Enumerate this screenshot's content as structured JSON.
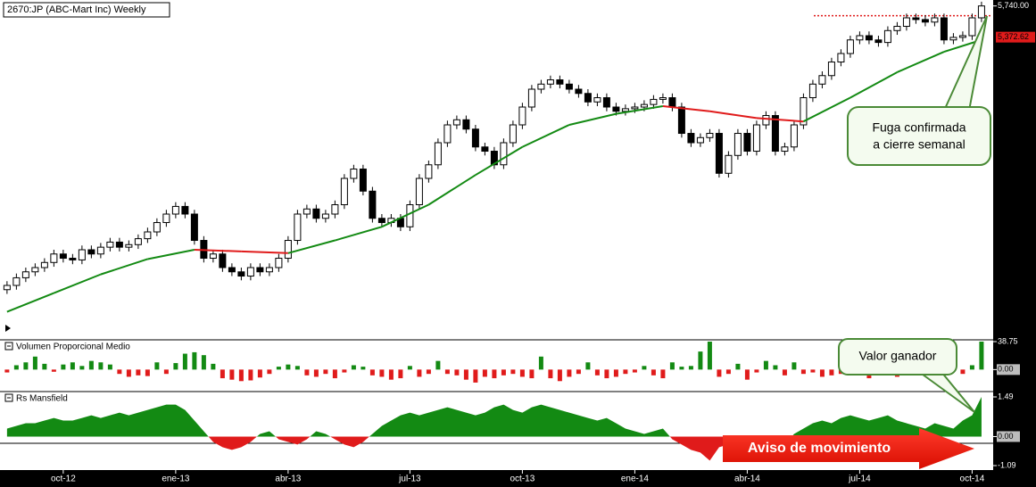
{
  "chart_data": [
    {
      "type": "candlestick",
      "title": "2670:JP (ABC-Mart Inc) Weekly",
      "open": [
        2400,
        2450,
        2540,
        2610,
        2660,
        2720,
        2820,
        2770,
        2750,
        2870,
        2820,
        2900,
        2960,
        2900,
        2930,
        3000,
        3080,
        3190,
        3290,
        3380,
        3290,
        2980,
        2770,
        2820,
        2660,
        2610,
        2560,
        2660,
        2610,
        2660,
        2770,
        2980,
        3290,
        3350,
        3240,
        3290,
        3400,
        3710,
        3820,
        3560,
        3240,
        3190,
        3240,
        3140,
        3400,
        3710,
        3870,
        4130,
        4340,
        4400,
        4290,
        4080,
        4030,
        3870,
        4130,
        4340,
        4550,
        4760,
        4820,
        4870,
        4820,
        4760,
        4710,
        4610,
        4660,
        4550,
        4500,
        4530,
        4550,
        4580,
        4640,
        4660,
        4550,
        4240,
        4130,
        4190,
        4240,
        3770,
        3980,
        4240,
        4030,
        4340,
        4450,
        4030,
        4080,
        4340,
        4660,
        4820,
        4920,
        5080,
        5180,
        5340,
        5390,
        5340,
        5310,
        5450,
        5500,
        5600,
        5580,
        5550,
        5600,
        5340,
        5370,
        5390,
        5600
      ],
      "high": [
        2500,
        2590,
        2660,
        2710,
        2770,
        2870,
        2870,
        2820,
        2920,
        2920,
        2950,
        3010,
        3010,
        2980,
        3050,
        3130,
        3240,
        3340,
        3430,
        3430,
        3340,
        3030,
        2870,
        2870,
        2710,
        2660,
        2710,
        2710,
        2710,
        2820,
        3030,
        3340,
        3400,
        3400,
        3340,
        3450,
        3760,
        3870,
        3870,
        3610,
        3290,
        3290,
        3290,
        3450,
        3760,
        3920,
        4180,
        4390,
        4450,
        4450,
        4340,
        4130,
        4080,
        4180,
        4390,
        4600,
        4810,
        4870,
        4920,
        4920,
        4870,
        4810,
        4760,
        4710,
        4710,
        4600,
        4580,
        4600,
        4630,
        4690,
        4710,
        4710,
        4600,
        4290,
        4240,
        4290,
        4290,
        4030,
        4290,
        4290,
        4390,
        4500,
        4500,
        4130,
        4390,
        4710,
        4870,
        4970,
        5130,
        5230,
        5390,
        5440,
        5440,
        5390,
        5500,
        5550,
        5650,
        5650,
        5630,
        5650,
        5650,
        5420,
        5440,
        5650,
        5790
      ],
      "low": [
        2350,
        2400,
        2490,
        2560,
        2610,
        2670,
        2720,
        2700,
        2700,
        2770,
        2770,
        2850,
        2850,
        2850,
        2880,
        2950,
        3030,
        3140,
        3240,
        3240,
        2930,
        2720,
        2720,
        2610,
        2560,
        2510,
        2510,
        2560,
        2560,
        2610,
        2720,
        2930,
        3240,
        3190,
        3190,
        3240,
        3350,
        3660,
        3510,
        3190,
        3140,
        3140,
        3090,
        3090,
        3350,
        3660,
        3820,
        4080,
        4290,
        4240,
        4030,
        3980,
        3820,
        3820,
        4080,
        4290,
        4500,
        4710,
        4770,
        4770,
        4710,
        4660,
        4560,
        4560,
        4500,
        4450,
        4450,
        4480,
        4500,
        4530,
        4590,
        4500,
        4190,
        4080,
        4080,
        4140,
        3720,
        3720,
        3930,
        3980,
        3980,
        4290,
        3980,
        3980,
        4030,
        4290,
        4610,
        4770,
        4870,
        5030,
        5130,
        5290,
        5290,
        5260,
        5260,
        5400,
        5450,
        5530,
        5500,
        5500,
        5290,
        5290,
        5320,
        5340,
        5550
      ],
      "close": [
        2450,
        2540,
        2610,
        2660,
        2720,
        2820,
        2770,
        2750,
        2870,
        2820,
        2900,
        2960,
        2900,
        2930,
        3000,
        3080,
        3190,
        3290,
        3380,
        3290,
        2980,
        2770,
        2820,
        2660,
        2610,
        2560,
        2660,
        2610,
        2660,
        2770,
        2980,
        3290,
        3350,
        3240,
        3290,
        3400,
        3710,
        3820,
        3560,
        3240,
        3190,
        3240,
        3140,
        3400,
        3710,
        3870,
        4130,
        4340,
        4400,
        4290,
        4080,
        4030,
        3870,
        4130,
        4340,
        4550,
        4760,
        4820,
        4870,
        4820,
        4760,
        4710,
        4610,
        4660,
        4550,
        4500,
        4530,
        4550,
        4580,
        4640,
        4660,
        4550,
        4240,
        4130,
        4190,
        4240,
        3770,
        3980,
        4240,
        4030,
        4340,
        4450,
        4030,
        4080,
        4340,
        4660,
        4820,
        4920,
        5080,
        5180,
        5340,
        5390,
        5340,
        5310,
        5450,
        5500,
        5600,
        5580,
        5550,
        5600,
        5340,
        5370,
        5390,
        5600,
        5740
      ],
      "color_up": "#ffffff",
      "color_down": "#000000",
      "ma": {
        "x": [
          0,
          5,
          10,
          15,
          20,
          25,
          30,
          35,
          40,
          45,
          50,
          55,
          60,
          65,
          70,
          75,
          80,
          85,
          90,
          95,
          100,
          104
        ],
        "values": [
          2140,
          2360,
          2580,
          2760,
          2870,
          2850,
          2830,
          2980,
          3140,
          3400,
          3750,
          4080,
          4340,
          4470,
          4560,
          4500,
          4420,
          4380,
          4660,
          4960,
          5200,
          5340
        ],
        "color_up": "#138a13",
        "color_down": "#e01b1b"
      },
      "ma_label": {
        "value": 5372.62,
        "label": "5,372.62"
      },
      "resistance": {
        "value": 5625,
        "color": "#e01b1b"
      },
      "xlim": [
        -0.75,
        105.15
      ],
      "xticks": [
        {
          "value": 6,
          "label": "oct-12"
        },
        {
          "value": 18,
          "label": "ene-13"
        },
        {
          "value": 30,
          "label": "abr-13"
        },
        {
          "value": 43,
          "label": "jul-13"
        },
        {
          "value": 55,
          "label": "oct-13"
        },
        {
          "value": 67,
          "label": "ene-14"
        },
        {
          "value": 79,
          "label": "abr-14"
        },
        {
          "value": 91,
          "label": "jul-14"
        },
        {
          "value": 103,
          "label": "oct-14"
        }
      ],
      "ylim": [
        1820,
        5810
      ],
      "yticks": [
        {
          "value": 5740,
          "label": "5,740.00"
        }
      ]
    },
    {
      "type": "bar",
      "title": "Volumen Proporcional Medio",
      "values": [
        -4,
        6,
        10,
        18,
        8,
        -3,
        7,
        10,
        5,
        12,
        10,
        7,
        -6,
        -10,
        -8,
        -9,
        10,
        -6,
        9,
        22,
        24,
        20,
        8,
        -12,
        -14,
        -16,
        -15,
        -11,
        -6,
        4,
        7,
        5,
        -8,
        -10,
        -6,
        -12,
        -4,
        6,
        4,
        -8,
        -10,
        -14,
        -12,
        5,
        -10,
        -6,
        12,
        -6,
        -8,
        -14,
        -18,
        -10,
        -12,
        -8,
        -6,
        -10,
        -12,
        18,
        -12,
        -16,
        -10,
        -6,
        10,
        -8,
        -12,
        -10,
        -6,
        -4,
        5,
        -8,
        -12,
        10,
        4,
        5,
        25,
        38.75,
        -10,
        -6,
        8,
        -14,
        -4,
        12,
        6,
        -8,
        10,
        -6,
        -4,
        -10,
        -8,
        -6,
        -5,
        -4,
        -12,
        -8,
        -6,
        -10,
        -6,
        -4,
        -8,
        10,
        -5,
        8,
        -6,
        6,
        38.75
      ],
      "color_up": "#138a13",
      "color_down": "#e01b1b",
      "ylim": [
        -28,
        38.75
      ],
      "yticks": [
        {
          "value": 0,
          "label": "0.00"
        },
        38.75
      ]
    },
    {
      "type": "area",
      "title": "Rs Mansfield",
      "values": [
        0.3,
        0.4,
        0.5,
        0.5,
        0.6,
        0.7,
        0.6,
        0.6,
        0.7,
        0.8,
        0.7,
        0.8,
        0.9,
        0.8,
        0.9,
        1.0,
        1.1,
        1.2,
        1.2,
        1.0,
        0.6,
        0.2,
        -0.2,
        -0.4,
        -0.5,
        -0.4,
        -0.2,
        0.1,
        0.2,
        -0.1,
        -0.2,
        -0.3,
        -0.1,
        0.2,
        0.1,
        -0.1,
        -0.3,
        -0.4,
        -0.2,
        0.1,
        0.4,
        0.6,
        0.8,
        0.9,
        0.8,
        0.9,
        1.0,
        1.1,
        1.0,
        0.9,
        0.8,
        0.9,
        1.1,
        1.2,
        1.0,
        0.9,
        1.1,
        1.2,
        1.1,
        1.0,
        0.9,
        0.8,
        0.7,
        0.6,
        0.7,
        0.5,
        0.3,
        0.2,
        0.1,
        0.2,
        0.3,
        -0.1,
        -0.3,
        -0.5,
        -0.6,
        -0.9,
        -0.4,
        -0.3,
        -0.5,
        -0.3,
        -0.2,
        -0.4,
        -0.6,
        -0.3,
        0.1,
        0.3,
        0.5,
        0.6,
        0.5,
        0.7,
        0.8,
        0.7,
        0.6,
        0.7,
        0.8,
        0.6,
        0.5,
        0.4,
        0.3,
        0.5,
        0.4,
        0.3,
        0.6,
        0.8,
        1.49
      ],
      "color_up": "#138a13",
      "color_down": "#e01b1b",
      "ylim": [
        -1.09,
        1.49
      ],
      "yticks": [
        1.49,
        {
          "value": 0,
          "label": "0.00"
        },
        -1.09
      ]
    }
  ],
  "annotations": {
    "breakout": [
      "Fuga confirmada",
      "a cierre semanal"
    ],
    "winner": "Valor ganador",
    "signal": "Aviso de movimiento"
  }
}
